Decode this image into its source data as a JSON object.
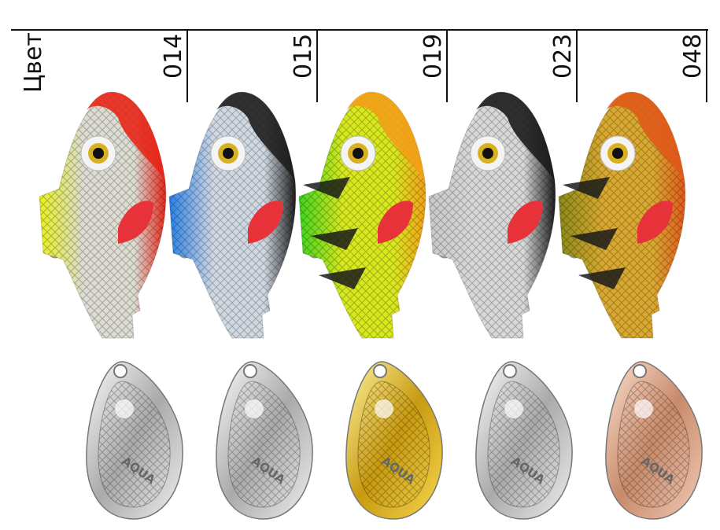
{
  "header": {
    "label": "Цвет",
    "codes": [
      "014",
      "015",
      "019",
      "023",
      "048"
    ]
  },
  "blade_logo": "AQUA"
}
